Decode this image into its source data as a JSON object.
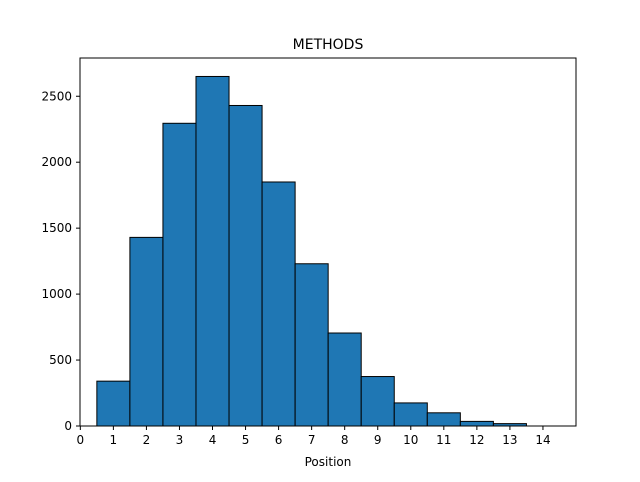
{
  "chart_data": {
    "type": "bar",
    "title": "METHODS",
    "xlabel": "Position",
    "ylabel": "",
    "categories": [
      1,
      2,
      3,
      4,
      5,
      6,
      7,
      8,
      9,
      10,
      11,
      12,
      13
    ],
    "values": [
      340,
      1430,
      2295,
      2650,
      2430,
      1850,
      1230,
      705,
      375,
      175,
      100,
      35,
      18
    ],
    "xticks": [
      0,
      1,
      2,
      3,
      4,
      5,
      6,
      7,
      8,
      9,
      10,
      11,
      12,
      13,
      14
    ],
    "yticks": [
      0,
      500,
      1000,
      1500,
      2000,
      2500
    ],
    "xlim": [
      -0.01,
      15
    ],
    "ylim": [
      0,
      2790
    ],
    "bar_color": "#1f77b4",
    "edge_color": "#000000",
    "grid": false
  }
}
